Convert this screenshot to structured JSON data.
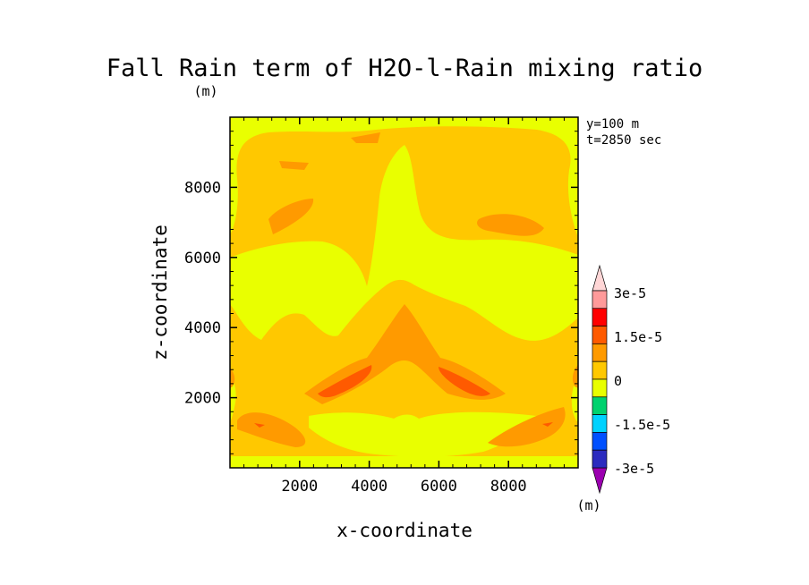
{
  "chart_data": {
    "type": "heatmap",
    "title": "Fall Rain term of H2O-l-Rain mixing ratio",
    "title_units": "(m)",
    "xlabel": "x-coordinate",
    "ylabel": "z-coordinate",
    "xlim": [
      0,
      10000
    ],
    "ylim": [
      0,
      10000
    ],
    "x_ticks": [
      2000,
      4000,
      6000,
      8000
    ],
    "x_tick_labels": [
      "2000",
      "4000",
      "6000",
      "8000"
    ],
    "y_ticks": [
      2000,
      4000,
      6000,
      8000
    ],
    "y_tick_labels": [
      "2000",
      "4000",
      "6000",
      "8000"
    ],
    "annotations": [
      "y=100 m",
      "t=2850 sec"
    ],
    "colorbar": {
      "units": "(m)",
      "levels": [
        -3e-05,
        -2.25e-05,
        -1.5e-05,
        -7.5e-06,
        0,
        7.5e-06,
        1.5e-05,
        2.25e-05,
        3e-05
      ],
      "tick_labels": [
        "3e-5",
        "1.5e-5",
        "0",
        "-1.5e-5",
        "-3e-5"
      ],
      "colors_low_to_high": [
        "#9b00b0",
        "#2b2bbf",
        "#0050ff",
        "#00d2ff",
        "#00d26e",
        "#e9ff00",
        "#ffc800",
        "#ff9a00",
        "#ff5a00",
        "#ff0000",
        "#ff9a9a",
        "#ffd6d6"
      ]
    },
    "field_levels": {
      "background": "#ffc800",
      "yellow": "#e9ff00",
      "orange": "#ff9a00",
      "red": "#ff5a00"
    }
  }
}
